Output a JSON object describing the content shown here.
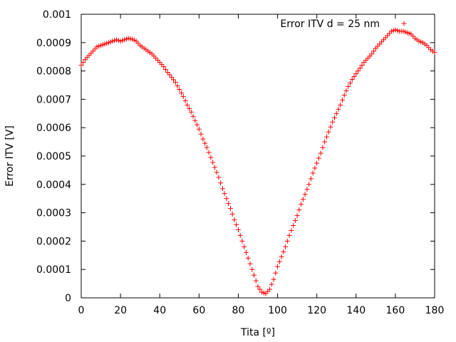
{
  "chart_data": {
    "type": "scatter",
    "marker": "+",
    "xlabel": "Tita [º]",
    "ylabel": "Error ITV [V]",
    "xlim": [
      0,
      180
    ],
    "ylim": [
      0,
      0.001
    ],
    "x_ticks": [
      "0",
      "20",
      "40",
      "60",
      "80",
      "100",
      "120",
      "140",
      "160",
      "180"
    ],
    "y_ticks": [
      "0",
      "0.0001",
      "0.0002",
      "0.0003",
      "0.0004",
      "0.0005",
      "0.0006",
      "0.0007",
      "0.0008",
      "0.0009",
      "0.001"
    ],
    "grid": false,
    "legend_position": "top-right",
    "series": [
      {
        "name": "Error ITV d = 25 nm",
        "color": "#ff0000",
        "x": [
          0,
          2,
          4,
          6,
          8,
          10,
          12,
          14,
          16,
          18,
          20,
          22,
          24,
          26,
          28,
          30,
          32,
          34,
          36,
          38,
          40,
          42,
          44,
          46,
          48,
          50,
          52,
          54,
          56,
          58,
          60,
          62,
          64,
          66,
          68,
          70,
          72,
          74,
          76,
          78,
          80,
          82,
          84,
          86,
          88,
          90,
          92,
          94,
          96,
          98,
          100,
          102,
          104,
          106,
          108,
          110,
          112,
          114,
          116,
          118,
          120,
          122,
          124,
          126,
          128,
          130,
          132,
          134,
          136,
          138,
          140,
          142,
          144,
          146,
          148,
          150,
          152,
          154,
          156,
          158,
          160,
          162,
          164,
          166,
          168,
          170,
          172,
          174,
          176,
          178,
          180
        ],
        "y": [
          0.00082,
          0.00084,
          0.000855,
          0.00087,
          0.000885,
          0.00089,
          0.000895,
          0.0009,
          0.000905,
          0.00091,
          0.000905,
          0.00091,
          0.000915,
          0.000912,
          0.000905,
          0.00089,
          0.00088,
          0.00087,
          0.00086,
          0.000845,
          0.00083,
          0.000815,
          0.000795,
          0.000778,
          0.00076,
          0.000735,
          0.00071,
          0.00068,
          0.000655,
          0.000625,
          0.000595,
          0.00056,
          0.00053,
          0.000495,
          0.00046,
          0.000425,
          0.000385,
          0.00035,
          0.000315,
          0.000275,
          0.00024,
          0.0002,
          0.00016,
          0.00012,
          8e-05,
          4e-05,
          2e-05,
          1.5e-05,
          3e-05,
          6.5e-05,
          0.00011,
          0.000145,
          0.00018,
          0.00022,
          0.000255,
          0.00029,
          0.00033,
          0.000365,
          0.0004,
          0.00044,
          0.000475,
          0.00051,
          0.00055,
          0.000585,
          0.00062,
          0.00065,
          0.00068,
          0.000715,
          0.000745,
          0.00077,
          0.00079,
          0.00081,
          0.00083,
          0.000845,
          0.00086,
          0.00088,
          0.000895,
          0.00091,
          0.000925,
          0.00094,
          0.000945,
          0.00094,
          0.00094,
          0.000935,
          0.00093,
          0.000915,
          0.000905,
          0.0009,
          0.00089,
          0.000875,
          0.000865
        ]
      }
    ]
  }
}
